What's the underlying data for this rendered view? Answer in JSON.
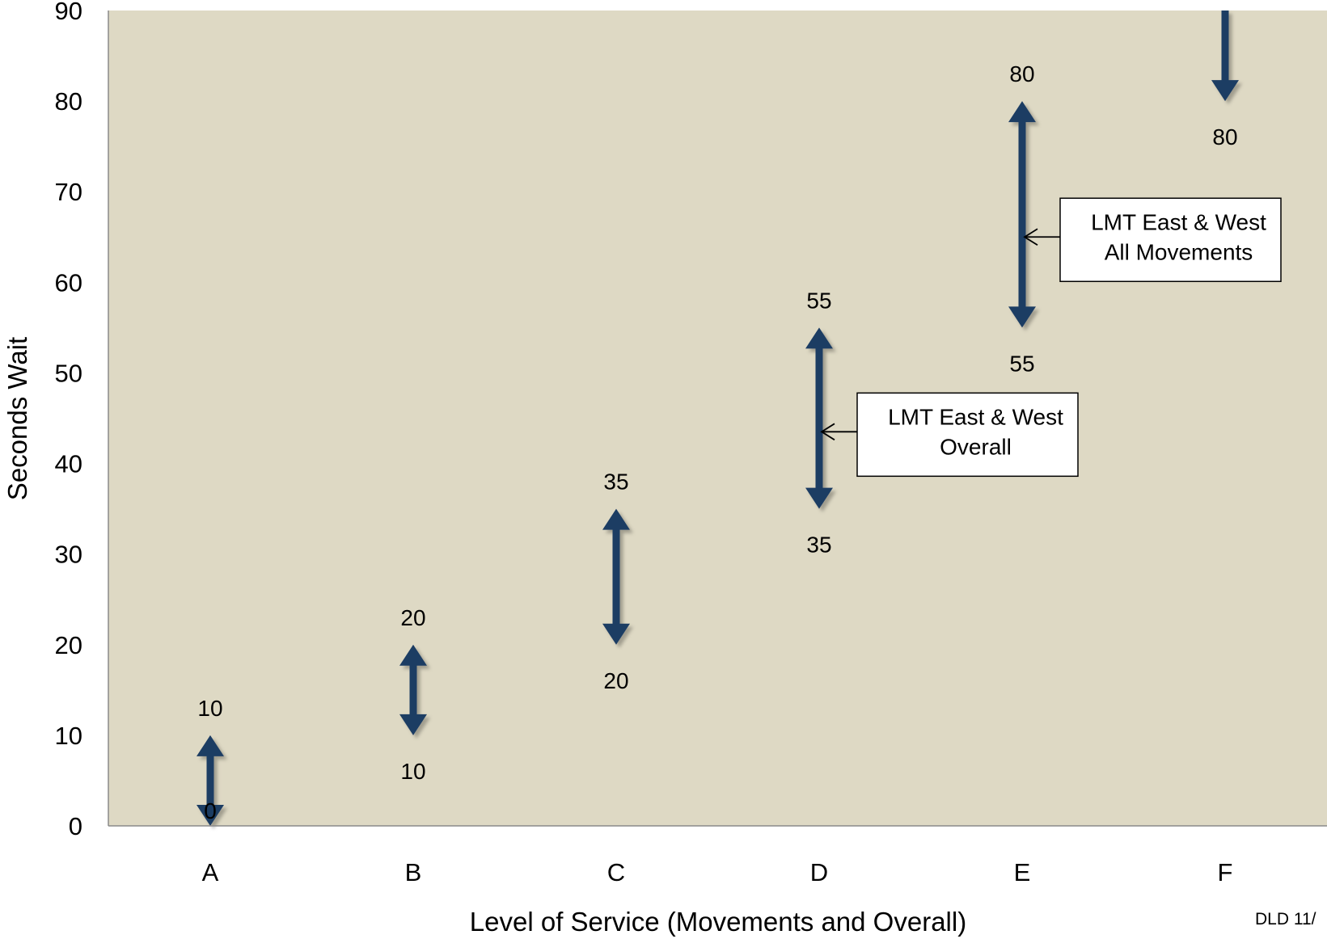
{
  "chart_data": {
    "type": "range-arrow",
    "xlabel": "Level of Service (Movements and Overall)",
    "ylabel": "Seconds Wait",
    "ylim": [
      0,
      90
    ],
    "yticks": [
      0,
      10,
      20,
      30,
      40,
      50,
      60,
      70,
      80,
      90
    ],
    "categories": [
      "A",
      "B",
      "C",
      "D",
      "E",
      "F"
    ],
    "ranges": [
      {
        "category": "A",
        "low": 0,
        "high": 10,
        "low_label": "0",
        "high_label": "10"
      },
      {
        "category": "B",
        "low": 10,
        "high": 20,
        "low_label": "10",
        "high_label": "20"
      },
      {
        "category": "C",
        "low": 20,
        "high": 35,
        "low_label": "20",
        "high_label": "35"
      },
      {
        "category": "D",
        "low": 35,
        "high": 55,
        "low_label": "35",
        "high_label": "55"
      },
      {
        "category": "E",
        "low": 55,
        "high": 80,
        "low_label": "55",
        "high_label": "80"
      },
      {
        "category": "F",
        "low": 80,
        "high": 90,
        "low_label": "80",
        "high_label": ""
      }
    ],
    "annotations": [
      {
        "lines": [
          "LMT East & West",
          "Overall"
        ],
        "category": "D",
        "y": 43.5
      },
      {
        "lines": [
          "LMT East & West",
          "All Movements"
        ],
        "category": "E",
        "y": 65
      }
    ],
    "colors": {
      "plot_background": "#ded9c4",
      "arrow": "#1f3d63"
    }
  },
  "footer_text": "DLD  11/"
}
